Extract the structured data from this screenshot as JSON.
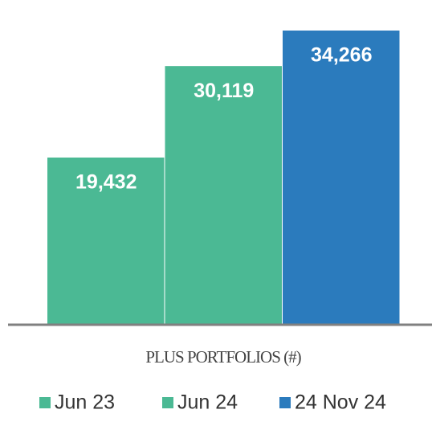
{
  "chart_data": {
    "type": "bar",
    "categories": [
      "PLUS PORTFOLIOS (#)"
    ],
    "series": [
      {
        "name": "Jun 23",
        "color": "#4bb994",
        "values": [
          19432
        ],
        "value_labels": [
          "19,432"
        ]
      },
      {
        "name": "Jun 24",
        "color": "#4bb994",
        "values": [
          30119
        ],
        "value_labels": [
          "30,119"
        ]
      },
      {
        "name": "24 Nov 24",
        "color": "#2b7bbd",
        "values": [
          34266
        ],
        "value_labels": [
          "34,266"
        ]
      }
    ]
  }
}
